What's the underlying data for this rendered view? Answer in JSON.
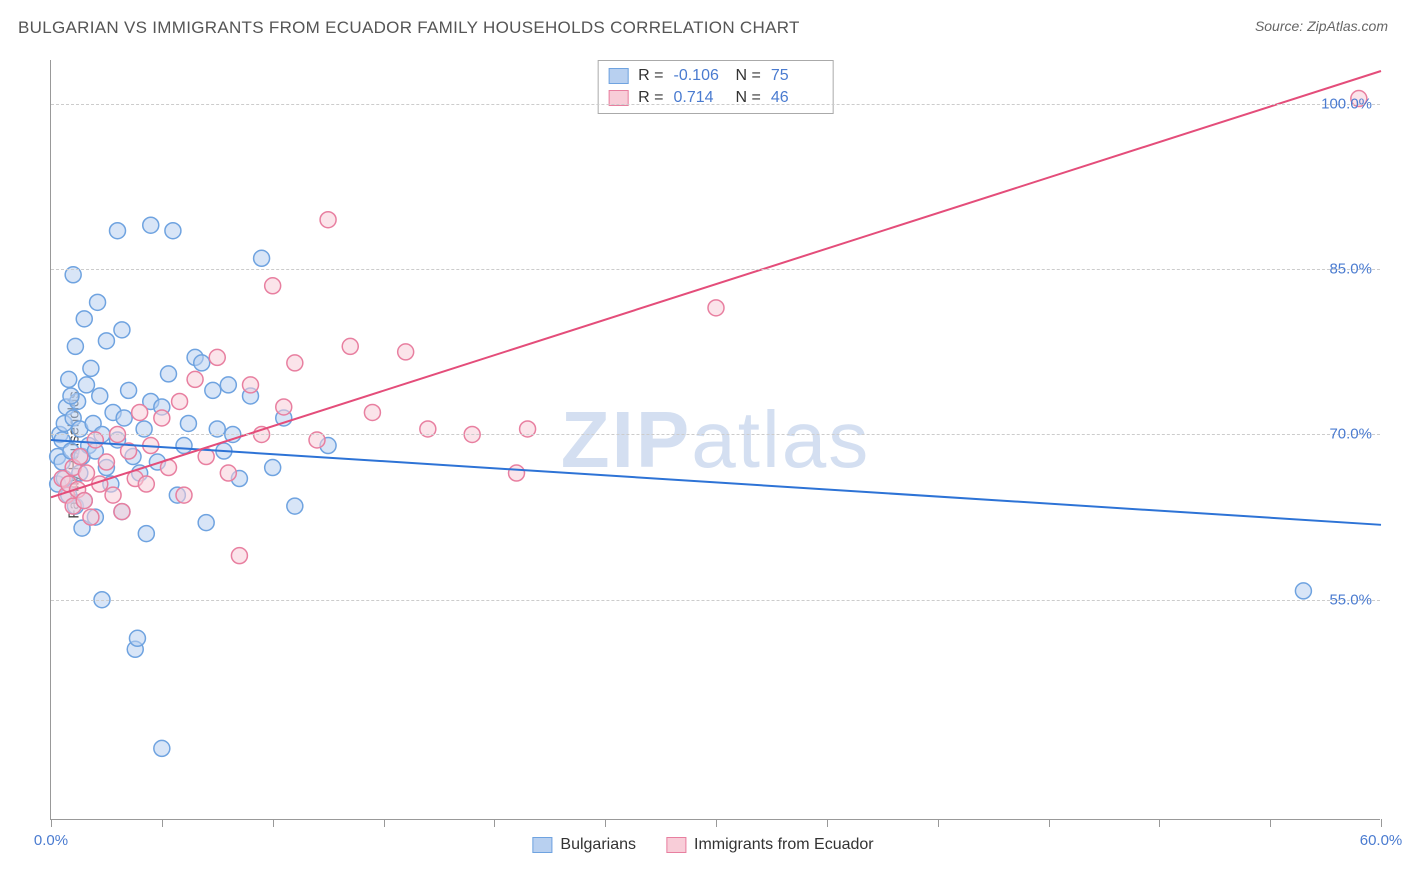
{
  "title": "BULGARIAN VS IMMIGRANTS FROM ECUADOR FAMILY HOUSEHOLDS CORRELATION CHART",
  "source_label": "Source:",
  "source_name": "ZipAtlas.com",
  "ylabel": "Family Households",
  "watermark_zip": "ZIP",
  "watermark_atlas": "atlas",
  "chart": {
    "type": "scatter+regression",
    "background_color": "#ffffff",
    "grid_color": "#cccccc",
    "axis_color": "#999999",
    "tick_label_color": "#4a7bd0",
    "xlim": [
      0,
      60
    ],
    "ylim": [
      35,
      104
    ],
    "xticks": [
      0,
      5,
      10,
      15,
      20,
      25,
      30,
      35,
      40,
      45,
      50,
      55,
      60
    ],
    "xtick_labels": {
      "0": "0.0%",
      "60": "60.0%"
    },
    "yticks": [
      55,
      70,
      85,
      100
    ],
    "ytick_labels": {
      "55": "55.0%",
      "70": "70.0%",
      "85": "85.0%",
      "100": "100.0%"
    },
    "marker_radius": 8,
    "marker_stroke_width": 1.5,
    "line_width": 2,
    "series": [
      {
        "name": "Bulgarians",
        "color_fill": "#b8d0f0",
        "color_stroke": "#6fa3e0",
        "line_color": "#2d73d6",
        "R": "-0.106",
        "N": "75",
        "regression": {
          "x1": 0,
          "y1": 69.5,
          "x2": 60,
          "y2": 61.8
        },
        "points": [
          [
            0.3,
            68
          ],
          [
            0.3,
            65.5
          ],
          [
            0.4,
            70
          ],
          [
            0.5,
            67.5
          ],
          [
            0.5,
            69.5
          ],
          [
            0.6,
            66
          ],
          [
            0.6,
            71
          ],
          [
            0.7,
            72.5
          ],
          [
            0.8,
            64.5
          ],
          [
            0.8,
            75
          ],
          [
            0.9,
            68.5
          ],
          [
            1.0,
            84.5
          ],
          [
            1.0,
            71.5
          ],
          [
            1.1,
            63.5
          ],
          [
            1.1,
            78
          ],
          [
            1.2,
            73
          ],
          [
            1.3,
            70.5
          ],
          [
            1.3,
            66.5
          ],
          [
            1.4,
            68
          ],
          [
            1.5,
            80.5
          ],
          [
            1.5,
            64
          ],
          [
            1.6,
            74.5
          ],
          [
            1.7,
            69
          ],
          [
            1.8,
            76
          ],
          [
            1.9,
            71
          ],
          [
            2.0,
            68.5
          ],
          [
            2.0,
            62.5
          ],
          [
            2.2,
            73.5
          ],
          [
            2.3,
            55
          ],
          [
            2.3,
            70
          ],
          [
            2.5,
            67
          ],
          [
            2.5,
            78.5
          ],
          [
            2.7,
            65.5
          ],
          [
            2.8,
            72
          ],
          [
            3.0,
            88.5
          ],
          [
            3.0,
            69.5
          ],
          [
            3.2,
            63
          ],
          [
            3.3,
            71.5
          ],
          [
            3.5,
            74
          ],
          [
            3.7,
            68
          ],
          [
            3.8,
            50.5
          ],
          [
            3.9,
            51.5
          ],
          [
            4.0,
            66.5
          ],
          [
            4.2,
            70.5
          ],
          [
            4.3,
            61
          ],
          [
            4.5,
            89
          ],
          [
            4.5,
            73
          ],
          [
            4.8,
            67.5
          ],
          [
            5.0,
            72.5
          ],
          [
            5.3,
            75.5
          ],
          [
            5.5,
            88.5
          ],
          [
            5.7,
            64.5
          ],
          [
            6.0,
            69
          ],
          [
            6.2,
            71
          ],
          [
            6.5,
            77
          ],
          [
            7.0,
            62
          ],
          [
            7.3,
            74
          ],
          [
            7.8,
            68.5
          ],
          [
            8.2,
            70
          ],
          [
            8.5,
            66
          ],
          [
            9.0,
            73.5
          ],
          [
            9.5,
            86
          ],
          [
            10.0,
            67
          ],
          [
            10.5,
            71.5
          ],
          [
            11.0,
            63.5
          ],
          [
            5.0,
            41.5
          ],
          [
            3.2,
            79.5
          ],
          [
            2.1,
            82
          ],
          [
            1.4,
            61.5
          ],
          [
            0.9,
            73.5
          ],
          [
            6.8,
            76.5
          ],
          [
            7.5,
            70.5
          ],
          [
            8.0,
            74.5
          ],
          [
            12.5,
            69
          ],
          [
            56.5,
            55.8
          ]
        ]
      },
      {
        "name": "Immigrants from Ecuador",
        "color_fill": "#f8cdd8",
        "color_stroke": "#e87fa0",
        "line_color": "#e44d7a",
        "R": "0.714",
        "N": "46",
        "regression": {
          "x1": 0,
          "y1": 64.3,
          "x2": 60,
          "y2": 103
        },
        "points": [
          [
            0.5,
            66
          ],
          [
            0.7,
            64.5
          ],
          [
            0.8,
            65.5
          ],
          [
            1.0,
            67
          ],
          [
            1.0,
            63.5
          ],
          [
            1.2,
            65
          ],
          [
            1.3,
            68
          ],
          [
            1.5,
            64
          ],
          [
            1.6,
            66.5
          ],
          [
            1.8,
            62.5
          ],
          [
            2.0,
            69.5
          ],
          [
            2.2,
            65.5
          ],
          [
            2.5,
            67.5
          ],
          [
            2.8,
            64.5
          ],
          [
            3.0,
            70
          ],
          [
            3.2,
            63
          ],
          [
            3.5,
            68.5
          ],
          [
            3.8,
            66
          ],
          [
            4.0,
            72
          ],
          [
            4.3,
            65.5
          ],
          [
            4.5,
            69
          ],
          [
            5.0,
            71.5
          ],
          [
            5.3,
            67
          ],
          [
            5.8,
            73
          ],
          [
            6.0,
            64.5
          ],
          [
            6.5,
            75
          ],
          [
            7.0,
            68
          ],
          [
            7.5,
            77
          ],
          [
            8.0,
            66.5
          ],
          [
            8.5,
            59
          ],
          [
            9.0,
            74.5
          ],
          [
            9.5,
            70
          ],
          [
            10.0,
            83.5
          ],
          [
            10.5,
            72.5
          ],
          [
            11.0,
            76.5
          ],
          [
            12.0,
            69.5
          ],
          [
            12.5,
            89.5
          ],
          [
            13.5,
            78
          ],
          [
            14.5,
            72
          ],
          [
            16.0,
            77.5
          ],
          [
            17.0,
            70.5
          ],
          [
            19.0,
            70
          ],
          [
            21.0,
            66.5
          ],
          [
            21.5,
            70.5
          ],
          [
            30.0,
            81.5
          ],
          [
            59.0,
            100.5
          ]
        ]
      }
    ]
  },
  "legend_bottom": [
    {
      "label": "Bulgarians",
      "fill": "#b8d0f0",
      "stroke": "#6fa3e0"
    },
    {
      "label": "Immigrants from Ecuador",
      "fill": "#f8cdd8",
      "stroke": "#e87fa0"
    }
  ]
}
